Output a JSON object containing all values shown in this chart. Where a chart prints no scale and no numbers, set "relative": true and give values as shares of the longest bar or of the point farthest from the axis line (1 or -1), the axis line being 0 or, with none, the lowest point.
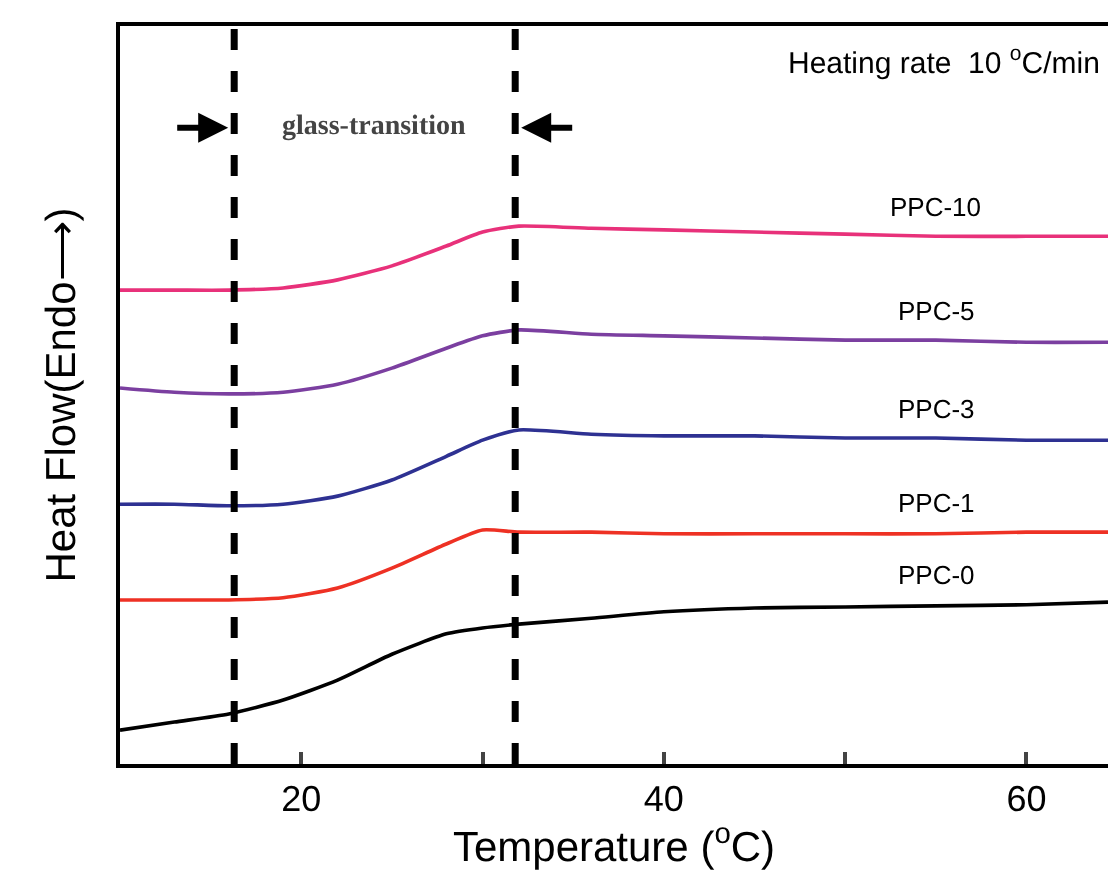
{
  "chart_data": {
    "type": "line",
    "relative": true,
    "xlabel": "Temperature ($^{o}$C)",
    "ylabel": "Heat Flow(Endo⟶)",
    "x": [
      10,
      13,
      16,
      19,
      22,
      25,
      28,
      30,
      32,
      36,
      40,
      45,
      50,
      55,
      60,
      64.5
    ],
    "xlim": [
      10,
      64.5
    ],
    "xticks": [
      20,
      {
        "value": 30,
        "label": null
      },
      40,
      {
        "value": 50,
        "label": null
      },
      60
    ],
    "series": [
      {
        "name": "PPC-10",
        "color": "#e8317a",
        "values": [
          0.881,
          0.881,
          0.881,
          0.885,
          0.9,
          0.926,
          0.963,
          0.989,
          1,
          0.996,
          0.993,
          0.989,
          0.985,
          0.981,
          0.981,
          0.981
        ]
      },
      {
        "name": "PPC-5",
        "color": "#7b3fa0",
        "values": [
          0.699,
          0.691,
          0.688,
          0.691,
          0.706,
          0.736,
          0.773,
          0.796,
          0.807,
          0.799,
          0.796,
          0.792,
          0.788,
          0.788,
          0.784,
          0.784
        ]
      },
      {
        "name": "PPC-3",
        "color": "#2e3192",
        "values": [
          0.483,
          0.483,
          0.48,
          0.483,
          0.498,
          0.528,
          0.572,
          0.602,
          0.621,
          0.613,
          0.61,
          0.61,
          0.606,
          0.606,
          0.602,
          0.602
        ]
      },
      {
        "name": "PPC-1",
        "color": "#ee3124",
        "values": [
          0.305,
          0.305,
          0.305,
          0.309,
          0.327,
          0.364,
          0.409,
          0.435,
          0.431,
          0.431,
          0.428,
          0.428,
          0.428,
          0.428,
          0.431,
          0.431
        ]
      },
      {
        "name": "PPC-0",
        "color": "#000000",
        "values": [
          0.063,
          0.078,
          0.093,
          0.119,
          0.156,
          0.204,
          0.242,
          0.253,
          0.26,
          0.271,
          0.283,
          0.29,
          0.292,
          0.294,
          0.296,
          0.301
        ]
      }
    ],
    "ref_lines": [
      {
        "axis": "x",
        "value": 16.3,
        "color": "#000000",
        "line_style": "dashed"
      },
      {
        "axis": "x",
        "value": 31.8,
        "color": "#000000",
        "line_style": "dashed"
      }
    ],
    "annotations": [
      "Heating rate  10 $^{o}$C/min",
      "glass-transition"
    ],
    "legend": false,
    "grid": false,
    "marker": "none",
    "line_style": "solid"
  }
}
